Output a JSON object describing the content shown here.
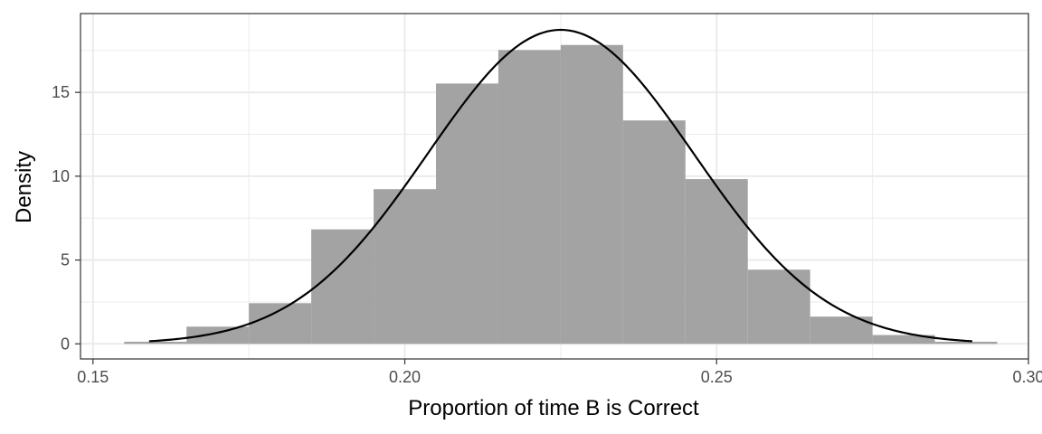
{
  "chart_data": {
    "type": "histogram",
    "title": "",
    "xlabel": "Proportion of time B is Correct",
    "ylabel": "Density",
    "xlim": [
      0.148,
      0.3
    ],
    "ylim": [
      -0.9,
      19.7
    ],
    "x_ticks": [
      0.15,
      0.2,
      0.25,
      0.3
    ],
    "x_tick_labels": [
      "0.15",
      "0.20",
      "0.25",
      "0.30"
    ],
    "y_ticks": [
      0,
      5,
      10,
      15
    ],
    "y_tick_labels": [
      "0",
      "5",
      "10",
      "15"
    ],
    "grid": true,
    "bins": [
      {
        "x0": 0.155,
        "x1": 0.165,
        "density": 0.1
      },
      {
        "x0": 0.165,
        "x1": 0.175,
        "density": 1.0
      },
      {
        "x0": 0.175,
        "x1": 0.185,
        "density": 2.4
      },
      {
        "x0": 0.185,
        "x1": 0.195,
        "density": 6.8
      },
      {
        "x0": 0.195,
        "x1": 0.205,
        "density": 9.2
      },
      {
        "x0": 0.205,
        "x1": 0.215,
        "density": 15.5
      },
      {
        "x0": 0.215,
        "x1": 0.225,
        "density": 17.5
      },
      {
        "x0": 0.225,
        "x1": 0.235,
        "density": 17.8
      },
      {
        "x0": 0.235,
        "x1": 0.245,
        "density": 13.3
      },
      {
        "x0": 0.245,
        "x1": 0.255,
        "density": 9.8
      },
      {
        "x0": 0.255,
        "x1": 0.265,
        "density": 4.4
      },
      {
        "x0": 0.265,
        "x1": 0.275,
        "density": 1.6
      },
      {
        "x0": 0.275,
        "x1": 0.285,
        "density": 0.5
      },
      {
        "x0": 0.285,
        "x1": 0.295,
        "density": 0.1
      }
    ],
    "normal_curve": {
      "mean": 0.225,
      "sd": 0.0213,
      "x_from": 0.159,
      "x_to": 0.291
    },
    "colors": {
      "bars": "#a3a3a3",
      "curve": "#000000",
      "grid": "#ebebeb",
      "panel_border": "#333333"
    }
  }
}
